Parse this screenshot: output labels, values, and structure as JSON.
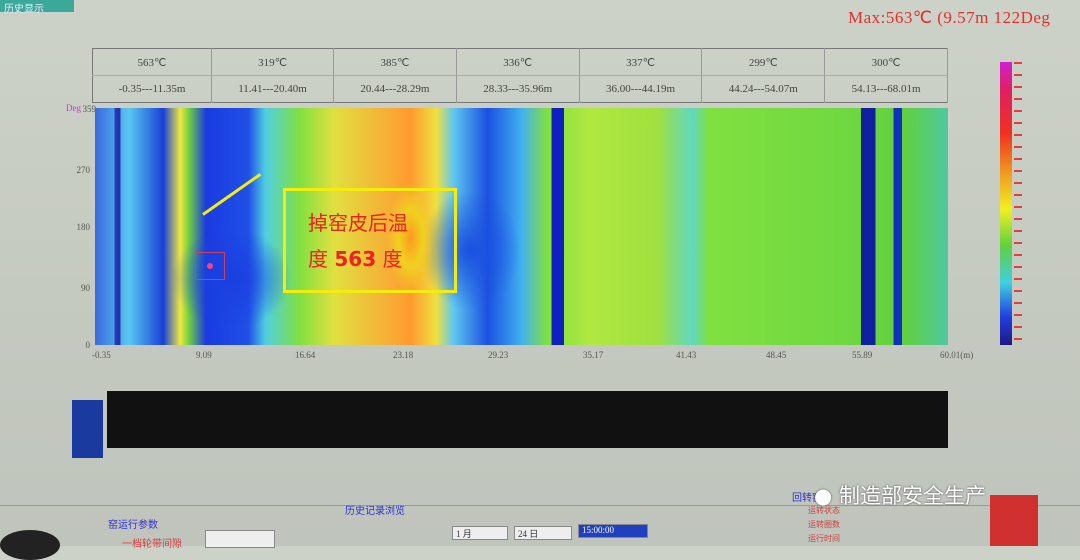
{
  "header": {
    "tab_label": "历史显示",
    "max_readout": "Max:563℃ (9.57m 122Deg"
  },
  "summary_table": {
    "temps": [
      "563℃",
      "319℃",
      "385℃",
      "336℃",
      "337℃",
      "299℃",
      "300℃"
    ],
    "ranges": [
      "-0.35---11.35m",
      "11.41---20.40m",
      "20.44---28.29m",
      "28.33---35.96m",
      "36.00---44.19m",
      "44.24---54.07m",
      "54.13---68.01m"
    ]
  },
  "heatmap": {
    "y_unit": "Deg",
    "y_ticks": [
      "359",
      "270",
      "180",
      "90",
      "0"
    ],
    "x_ticks": [
      "-0.35",
      "9.09",
      "16.64",
      "23.18",
      "29.23",
      "35.17",
      "41.43",
      "48.45",
      "55.89",
      "60.01(m)"
    ],
    "colormap_top": "#d020d0",
    "colormap_bottom": "#201880"
  },
  "annotation": {
    "line1": "掉窑皮后温",
    "line2_pre": "度",
    "line2_value": "563",
    "line2_post": "度",
    "color": "#ee2020",
    "box_color": "#f4ec10"
  },
  "bottom": {
    "left_group": "窑运行参数",
    "left_field_label": "一档轮带间隙",
    "history_label": "历史记录浏览",
    "month": "1 月",
    "day": "24 日",
    "time": "15:00:00",
    "right_group": "回转窑",
    "right_labels": [
      "运转状态",
      "运转圈数",
      "运行时间"
    ]
  },
  "watermark": "制造部安全生产"
}
